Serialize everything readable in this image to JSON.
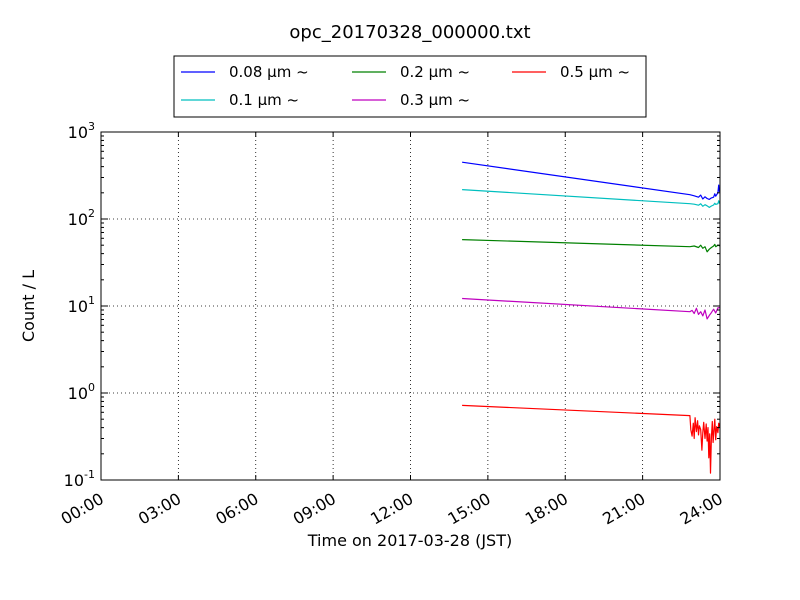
{
  "chart_data": {
    "type": "line",
    "title": "opc_20170328_000000.txt",
    "xlabel": "Time on 2017-03-28 (JST)",
    "ylabel": "Count / L",
    "x_range": [
      "00:00",
      "24:00"
    ],
    "x_ticks": [
      "00:00",
      "03:00",
      "06:00",
      "09:00",
      "12:00",
      "15:00",
      "18:00",
      "21:00",
      "24:00"
    ],
    "y_scale": "log",
    "ylim": [
      0.1,
      1000
    ],
    "y_ticks": [
      {
        "value": 0.1,
        "base": "10",
        "exp": "-1"
      },
      {
        "value": 1,
        "base": "10",
        "exp": "0"
      },
      {
        "value": 10,
        "base": "10",
        "exp": "1"
      },
      {
        "value": 100,
        "base": "10",
        "exp": "2"
      },
      {
        "value": 1000,
        "base": "10",
        "exp": "3"
      }
    ],
    "grid": true,
    "legend_placement": "top-center, outside plot",
    "series": [
      {
        "name": "0.08 μm ~",
        "color": "#0000ff",
        "points": [
          [
            "14:00",
            450
          ],
          [
            "22:50",
            190
          ],
          [
            "23:00",
            185
          ],
          [
            "23:10",
            178
          ],
          [
            "23:15",
            188
          ],
          [
            "23:20",
            170
          ],
          [
            "23:25",
            180
          ],
          [
            "23:30",
            172
          ],
          [
            "23:35",
            168
          ],
          [
            "23:40",
            175
          ],
          [
            "23:45",
            178
          ],
          [
            "23:48",
            195
          ],
          [
            "23:50",
            183
          ],
          [
            "23:55",
            200
          ],
          [
            "23:57",
            245
          ],
          [
            "23:58",
            210
          ],
          [
            "24:00",
            205
          ]
        ]
      },
      {
        "name": "0.1 μm ~",
        "color": "#00bfbf",
        "points": [
          [
            "14:00",
            218
          ],
          [
            "22:50",
            150
          ],
          [
            "23:00",
            148
          ],
          [
            "23:10",
            144
          ],
          [
            "23:15",
            150
          ],
          [
            "23:20",
            140
          ],
          [
            "23:25",
            146
          ],
          [
            "23:30",
            142
          ],
          [
            "23:35",
            136
          ],
          [
            "23:40",
            141
          ],
          [
            "23:45",
            145
          ],
          [
            "23:48",
            152
          ],
          [
            "23:50",
            147
          ],
          [
            "23:55",
            150
          ],
          [
            "23:57",
            162
          ],
          [
            "23:58",
            155
          ],
          [
            "24:00",
            150
          ]
        ]
      },
      {
        "name": "0.2 μm ~",
        "color": "#008000",
        "points": [
          [
            "14:00",
            58
          ],
          [
            "22:50",
            48
          ],
          [
            "23:00",
            49
          ],
          [
            "23:10",
            47
          ],
          [
            "23:15",
            50
          ],
          [
            "23:20",
            46
          ],
          [
            "23:25",
            48
          ],
          [
            "23:30",
            42
          ],
          [
            "23:35",
            45
          ],
          [
            "23:40",
            47
          ],
          [
            "23:45",
            49
          ],
          [
            "23:48",
            51
          ],
          [
            "23:50",
            48
          ],
          [
            "23:55",
            50
          ],
          [
            "24:00",
            49
          ]
        ]
      },
      {
        "name": "0.3 μm ~",
        "color": "#bf00bf",
        "points": [
          [
            "14:00",
            12.2
          ],
          [
            "22:50",
            8.6
          ],
          [
            "22:55",
            8.9
          ],
          [
            "23:00",
            8.2
          ],
          [
            "23:05",
            9.4
          ],
          [
            "23:10",
            8.0
          ],
          [
            "23:15",
            8.6
          ],
          [
            "23:20",
            7.7
          ],
          [
            "23:25",
            9.0
          ],
          [
            "23:30",
            7.1
          ],
          [
            "23:35",
            7.8
          ],
          [
            "23:40",
            8.4
          ],
          [
            "23:45",
            9.2
          ],
          [
            "23:50",
            8.3
          ],
          [
            "23:55",
            9.5
          ],
          [
            "24:00",
            9.6
          ]
        ]
      },
      {
        "name": "0.5 μm ~",
        "color": "#ff0000",
        "points": [
          [
            "14:00",
            0.72
          ],
          [
            "22:50",
            0.55
          ],
          [
            "22:52",
            0.38
          ],
          [
            "22:55",
            0.32
          ],
          [
            "22:58",
            0.45
          ],
          [
            "23:00",
            0.3
          ],
          [
            "23:02",
            0.52
          ],
          [
            "23:05",
            0.36
          ],
          [
            "23:08",
            0.48
          ],
          [
            "23:10",
            0.33
          ],
          [
            "23:12",
            0.42
          ],
          [
            "23:15",
            0.38
          ],
          [
            "23:18",
            0.22
          ],
          [
            "23:20",
            0.35
          ],
          [
            "23:22",
            0.46
          ],
          [
            "23:25",
            0.3
          ],
          [
            "23:28",
            0.44
          ],
          [
            "23:30",
            0.28
          ],
          [
            "23:32",
            0.4
          ],
          [
            "23:34",
            0.18
          ],
          [
            "23:36",
            0.34
          ],
          [
            "23:38",
            0.12
          ],
          [
            "23:40",
            0.31
          ],
          [
            "23:42",
            0.47
          ],
          [
            "23:44",
            0.27
          ],
          [
            "23:46",
            0.38
          ],
          [
            "23:48",
            0.5
          ],
          [
            "23:50",
            0.29
          ],
          [
            "23:52",
            0.41
          ],
          [
            "23:55",
            0.35
          ],
          [
            "23:57",
            0.45
          ],
          [
            "24:00",
            0.4
          ]
        ]
      }
    ]
  }
}
